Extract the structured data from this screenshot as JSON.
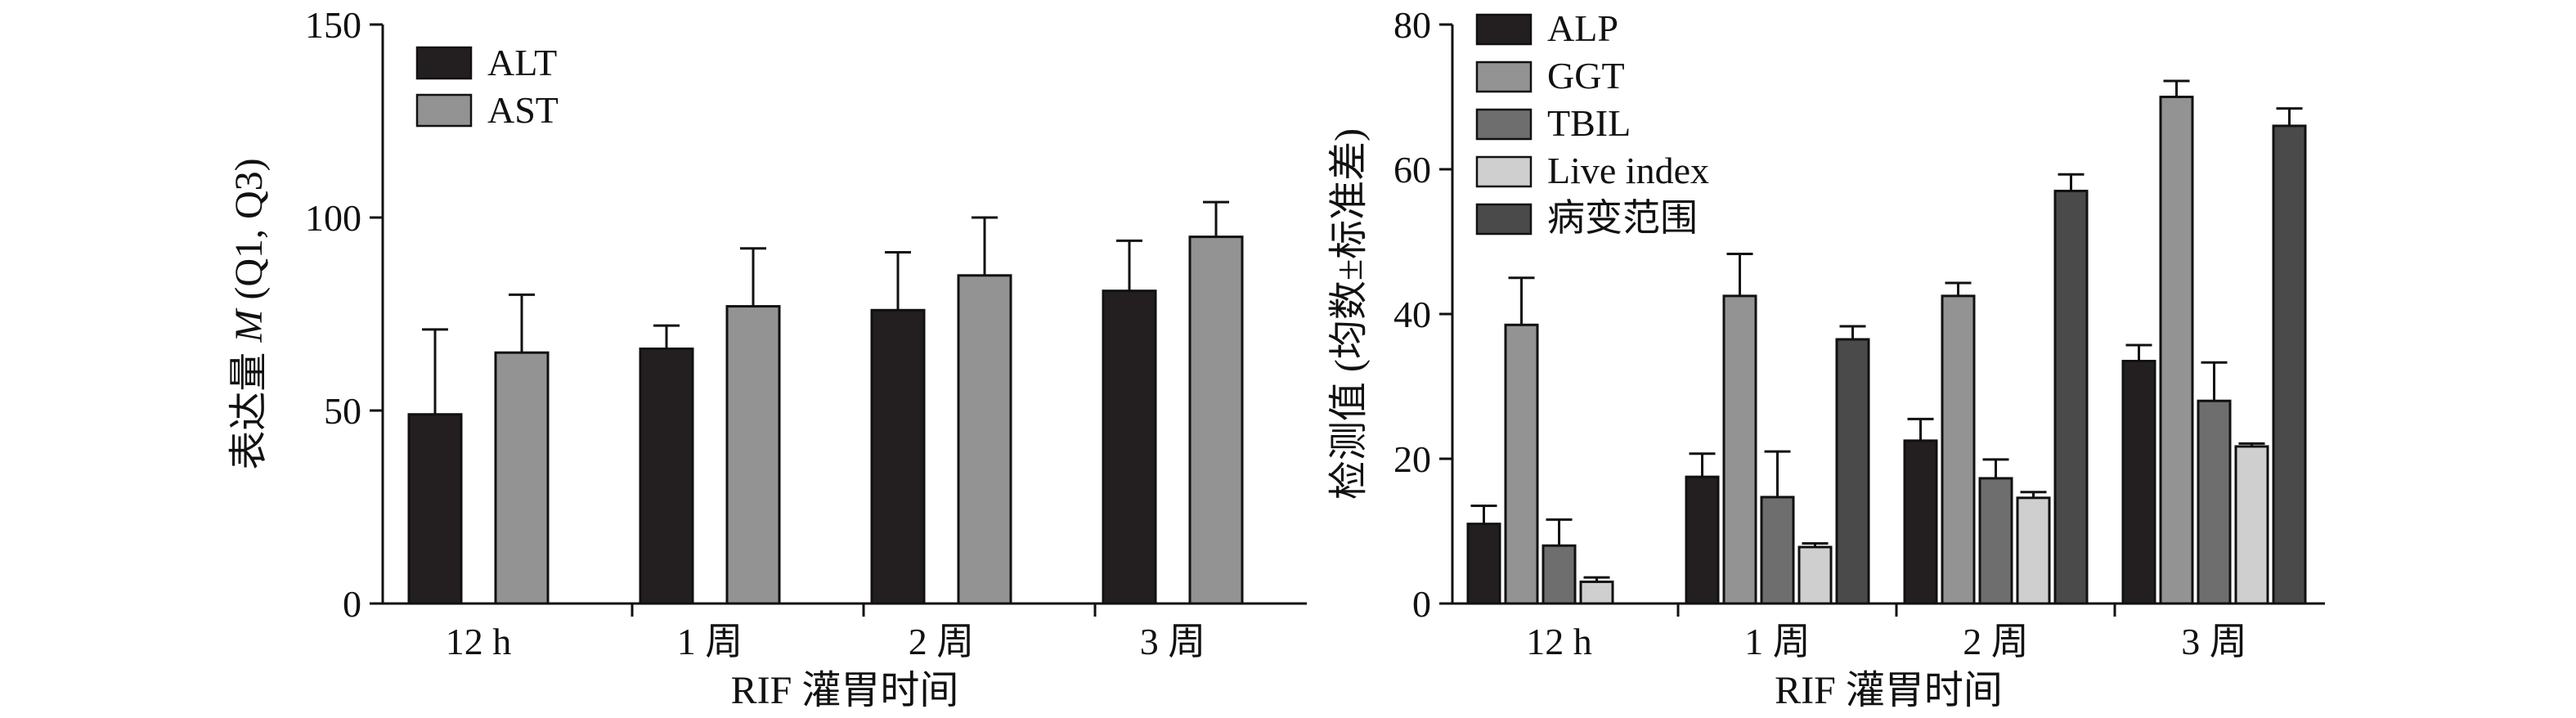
{
  "chart_data": [
    {
      "type": "bar",
      "categories": [
        "12 h",
        "1 周",
        "2 周",
        "3 周"
      ],
      "series": [
        {
          "name": "ALT",
          "color": "#231f20",
          "values": [
            49,
            66,
            76,
            81
          ],
          "err_upper": [
            71,
            72,
            91,
            94
          ]
        },
        {
          "name": "AST",
          "color": "#939393",
          "values": [
            65,
            77,
            85,
            95
          ],
          "err_upper": [
            80,
            92,
            100,
            104
          ]
        }
      ],
      "ylim": [
        0,
        150
      ],
      "yticks": [
        0,
        50,
        100,
        150
      ],
      "ylabel_parts": [
        "表达量 ",
        "M",
        " (Q1, Q3)"
      ],
      "xlabel": "RIF 灌胃时间",
      "legend": "top-left"
    },
    {
      "type": "bar",
      "categories": [
        "12 h",
        "1 周",
        "2 周",
        "3 周"
      ],
      "series": [
        {
          "name": "ALP",
          "color": "#231f20",
          "values": [
            11,
            17.5,
            22.5,
            33.5
          ],
          "err": [
            2.5,
            3.2,
            3,
            2.2
          ]
        },
        {
          "name": "GGT",
          "color": "#939393",
          "values": [
            38.5,
            42.5,
            42.5,
            70
          ],
          "err": [
            6.5,
            5.8,
            1.8,
            2.2
          ]
        },
        {
          "name": "TBIL",
          "color": "#6e6e6e",
          "values": [
            8,
            14.7,
            17.3,
            28
          ],
          "err": [
            3.6,
            6.3,
            2.6,
            5.3
          ]
        },
        {
          "name": "Live index",
          "color": "#cfcfcf",
          "values": [
            3,
            7.8,
            14.6,
            21.7
          ],
          "err": [
            0.6,
            0.5,
            0.8,
            0.4
          ]
        },
        {
          "name": "病变范围",
          "color": "#4a4a4a",
          "values": [
            null,
            36.5,
            57,
            66
          ],
          "err": [
            null,
            1.8,
            2.3,
            2.4
          ]
        }
      ],
      "ylim": [
        0,
        80
      ],
      "yticks": [
        0,
        20,
        40,
        60,
        80
      ],
      "ylabel": "检测值 (均数±标准差)",
      "xlabel": "RIF 灌胃时间",
      "legend": "top-left"
    }
  ]
}
